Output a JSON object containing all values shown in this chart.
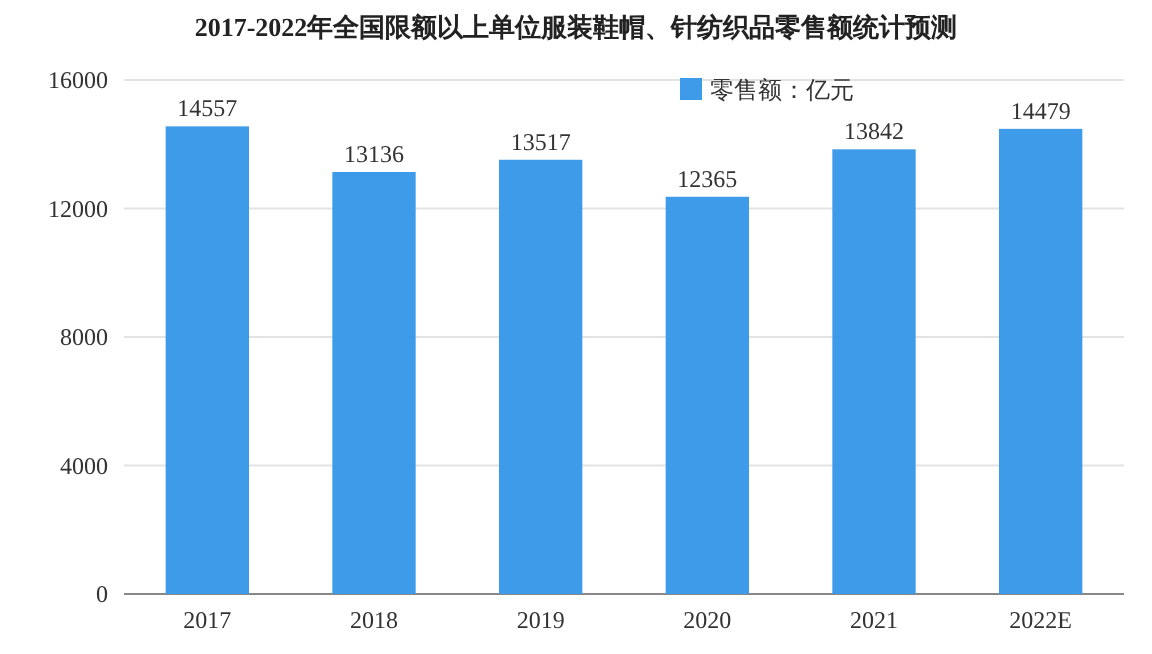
{
  "chart_data": {
    "type": "bar",
    "title": "2017-2022年全国限额以上单位服装鞋帽、针纺织品零售额统计预测",
    "categories": [
      "2017",
      "2018",
      "2019",
      "2020",
      "2021",
      "2022E"
    ],
    "series": [
      {
        "name": "零售额：亿元",
        "color": "#3d9be9",
        "values": [
          14557,
          13136,
          13517,
          12365,
          13842,
          14479
        ]
      }
    ],
    "ylim": [
      0,
      16000
    ],
    "yticks": [
      0,
      4000,
      8000,
      12000,
      16000
    ],
    "grid": "y",
    "legend": "top right",
    "data_labels": true
  }
}
